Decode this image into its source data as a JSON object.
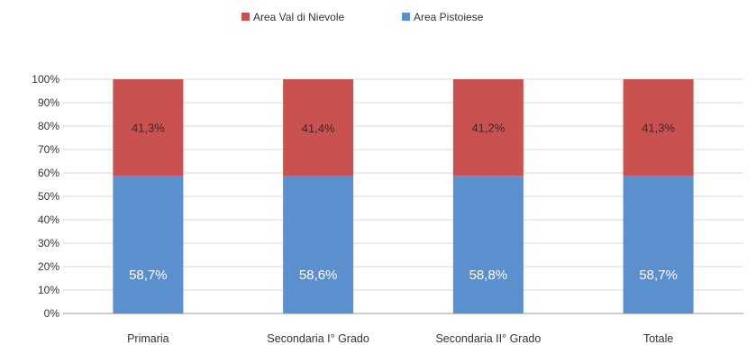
{
  "chart_data": {
    "type": "bar",
    "stacked": true,
    "categories": [
      "Primaria",
      "Secondaria I° Grado",
      "Secondaria II° Grado",
      "Totale"
    ],
    "series": [
      {
        "name": "Area Pistoiese",
        "values": [
          58.7,
          58.6,
          58.8,
          58.7
        ],
        "labels": [
          "58,7%",
          "58,6%",
          "58,8%",
          "58,7%"
        ],
        "color": "#5b8fce"
      },
      {
        "name": "Area Val di Nievole",
        "values": [
          41.3,
          41.4,
          41.2,
          41.3
        ],
        "labels": [
          "41,3%",
          "41,4%",
          "41,2%",
          "41,3%"
        ],
        "color": "#c9514f"
      }
    ],
    "legend_order": [
      "Area Val di Nievole",
      "Area Pistoiese"
    ],
    "yticks": [
      "0%",
      "10%",
      "20%",
      "30%",
      "40%",
      "50%",
      "60%",
      "70%",
      "80%",
      "90%",
      "100%"
    ],
    "ylim": [
      0,
      100
    ],
    "grid": true,
    "legend_position": "top"
  }
}
